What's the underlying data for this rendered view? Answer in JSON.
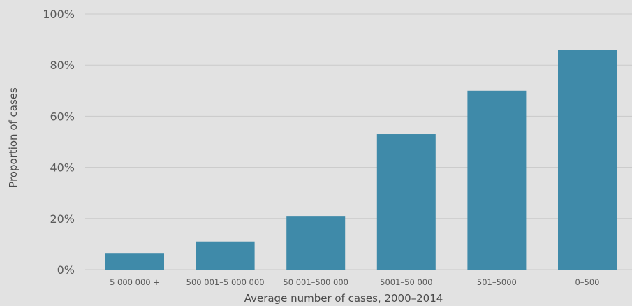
{
  "chart_data": {
    "type": "bar",
    "categories": [
      "5 000 000 +",
      "500 001–5 000 000",
      "50 001–500 000",
      "5001–50 000",
      "501–5000",
      "0–500"
    ],
    "values": [
      6.5,
      11,
      21,
      53,
      70,
      86
    ],
    "xlabel": "Average number of cases, 2000–2014",
    "ylabel": "Proportion of cases",
    "ylim": [
      0,
      100
    ],
    "yticks": [
      "0%",
      "20%",
      "40%",
      "60%",
      "80%",
      "100%"
    ],
    "ytick_values": [
      0,
      20,
      40,
      60,
      80,
      100
    ],
    "grid": true,
    "bar_color": "#3f8aa9",
    "background_color": "#e2e2e2"
  }
}
